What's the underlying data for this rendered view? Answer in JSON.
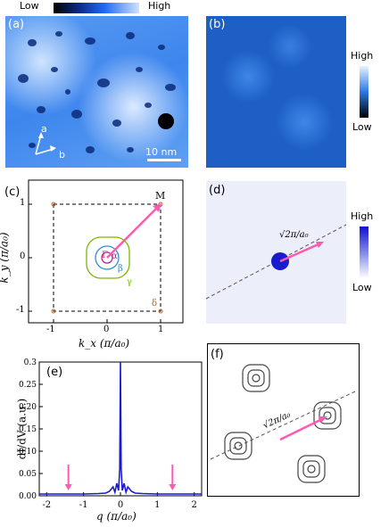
{
  "top_colorbar": {
    "low": "Low",
    "high": "High"
  },
  "panel_a": {
    "label": "(a)",
    "axis_a": "a",
    "axis_b": "b",
    "scale_bar": "10 nm"
  },
  "panel_b": {
    "label": "(b)",
    "colorbar_high": "High",
    "colorbar_low": "Low"
  },
  "panel_c": {
    "label": "(c)",
    "xlabel": "k_x (π/a₀)",
    "ylabel": "k_y (π/a₀)",
    "xticks": [
      "-1",
      "0",
      "1"
    ],
    "yticks": [
      "1",
      "0",
      "-1"
    ],
    "point_M": "M",
    "point_Gamma": "Γ",
    "label_alpha": "α",
    "label_beta": "β",
    "label_gamma": "γ",
    "label_delta": "δ"
  },
  "panel_d": {
    "label": "(d)",
    "vector_label": "√2π/a₀",
    "colorbar_high": "High",
    "colorbar_low": "Low"
  },
  "panel_e": {
    "label": "(e)",
    "xlabel": "q (π/a₀)",
    "ylabel": "dI/dV (a.u.)",
    "xticks": [
      "-2",
      "-1",
      "0",
      "1",
      "2"
    ],
    "yticks": [
      "0.00",
      "0.05",
      "0.10",
      "0.15",
      "0.20",
      "0.25",
      "0.3"
    ]
  },
  "panel_f": {
    "label": "(f)",
    "vector_label": "√2π/a₀"
  },
  "chart_data": {
    "type": "line",
    "xlabel": "q (π/a₀)",
    "ylabel": "dI/dV (a.u.)",
    "xlim": [
      -2.2,
      2.2
    ],
    "ylim": [
      0,
      0.3
    ],
    "series": [
      {
        "x": [
          -2.2,
          -1.8,
          -1.4,
          -1.0,
          -0.6,
          -0.4,
          -0.3,
          -0.2,
          -0.15,
          -0.1,
          -0.05,
          -0.02,
          0,
          0.02,
          0.05,
          0.1,
          0.15,
          0.2,
          0.3,
          0.4,
          0.6,
          1.0,
          1.4,
          1.8,
          2.2
        ],
        "values": [
          0.004,
          0.004,
          0.004,
          0.004,
          0.005,
          0.006,
          0.01,
          0.02,
          0.008,
          0.028,
          0.012,
          0.06,
          0.3,
          0.06,
          0.012,
          0.028,
          0.008,
          0.02,
          0.01,
          0.006,
          0.005,
          0.004,
          0.004,
          0.004,
          0.004
        ]
      }
    ],
    "arrows_at_q": [
      -1.41,
      1.41
    ]
  }
}
